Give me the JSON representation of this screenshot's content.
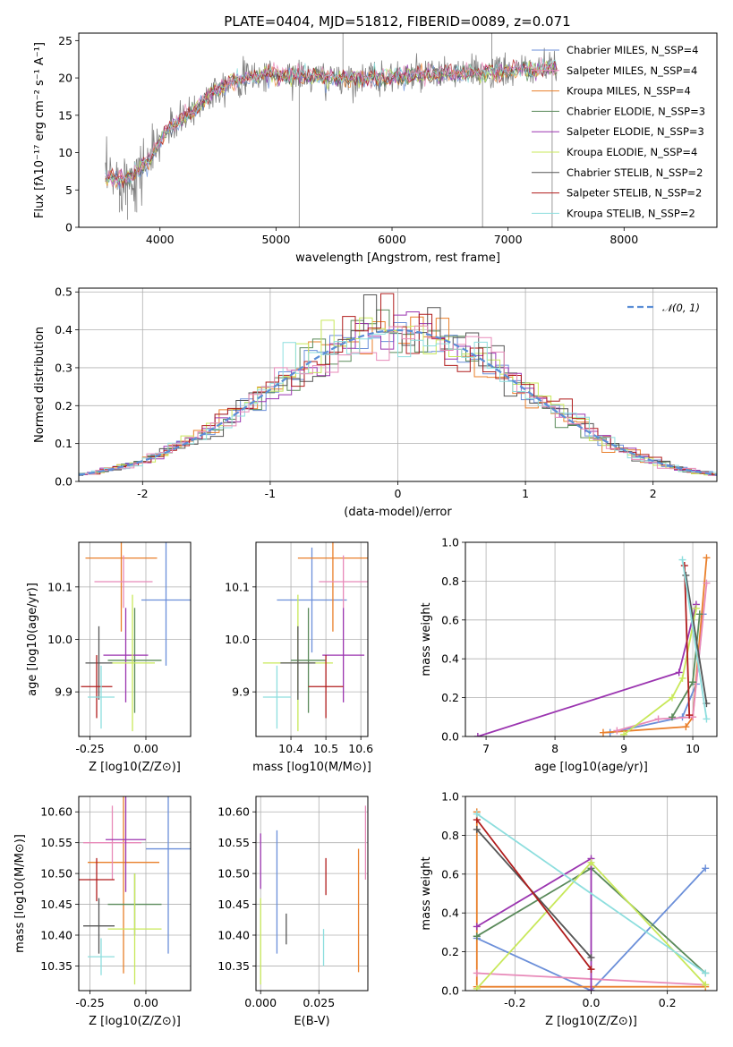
{
  "figure": {
    "title": "PLATE=0404, MJD=51812, FIBERID=0089, z=0.071"
  },
  "colors": [
    "#6b8fd9",
    "#e97f2a",
    "#5a8a5a",
    "#9b35b0",
    "#c8e85a",
    "#555555",
    "#b01c1c",
    "#8ddede",
    "#e88ab9"
  ],
  "chart_data": [
    {
      "id": "spectrum",
      "type": "line",
      "xlabel": "wavelength [Angstrom, rest frame]",
      "ylabel": "Flux [fλ10⁻¹⁷ erg cm⁻² s⁻¹ A⁻¹]",
      "xlim": [
        3300,
        8800
      ],
      "ylim": [
        0,
        26
      ],
      "xticks": [
        4000,
        5000,
        6000,
        7000,
        8000
      ],
      "yticks": [
        0,
        5,
        10,
        15,
        20,
        25
      ],
      "legend_position": "right",
      "series": [
        {
          "name": "Chabrier MILES, N_SSP=4",
          "color": "#6b8fd9"
        },
        {
          "name": "Salpeter MILES, N_SSP=4",
          "color": "#e88ab9"
        },
        {
          "name": "Kroupa MILES, N_SSP=4",
          "color": "#e97f2a"
        },
        {
          "name": "Chabrier ELODIE, N_SSP=3",
          "color": "#5a8a5a"
        },
        {
          "name": "Salpeter ELODIE, N_SSP=3",
          "color": "#9b35b0"
        },
        {
          "name": "Kroupa ELODIE, N_SSP=4",
          "color": "#c8e85a"
        },
        {
          "name": "Chabrier STELIB, N_SSP=2",
          "color": "#555555"
        },
        {
          "name": "Salpeter STELIB, N_SSP=2",
          "color": "#b01c1c"
        },
        {
          "name": "Kroupa STELIB, N_SSP=2",
          "color": "#8ddede"
        }
      ],
      "continuum": {
        "x": [
          3530,
          3700,
          3850,
          3950,
          4050,
          4200,
          4300,
          4400,
          4600,
          4900,
          5200,
          5500,
          5800,
          6100,
          6400,
          6700,
          7000,
          7200,
          7400
        ],
        "y": [
          6.5,
          6.5,
          8.0,
          10.0,
          13.0,
          14.5,
          15.5,
          17.5,
          19.5,
          20.5,
          20.3,
          20.0,
          20.0,
          20.2,
          20.5,
          20.7,
          20.8,
          21.2,
          21.3
        ]
      }
    },
    {
      "id": "residuals",
      "type": "histogram",
      "xlabel": "(data-model)/error",
      "ylabel": "Normed distribution",
      "xlim": [
        -2.5,
        2.5
      ],
      "ylim": [
        0,
        0.51
      ],
      "xticks": [
        -2,
        -1,
        0,
        1,
        2
      ],
      "yticks": [
        0.0,
        0.1,
        0.2,
        0.3,
        0.4,
        0.5
      ],
      "grid": true,
      "legend_position": "top-right",
      "reference_curve": {
        "name": "𝒩(0, 1)",
        "mean": 0,
        "sigma": 1,
        "style": "dashed",
        "color": "#5b8ed6"
      },
      "bin_width": 0.1
    },
    {
      "id": "age_vs_Z",
      "type": "errorbar",
      "xlabel": "Z [log10(Z/Z⊙)]",
      "ylabel": "age  [log10(age/yr)]",
      "xlim": [
        -0.3,
        0.2
      ],
      "ylim": [
        9.815,
        10.185
      ],
      "xticks": [
        -0.25,
        0.0
      ],
      "yticks": [
        9.9,
        10.0,
        10.1
      ],
      "grid": true,
      "points": [
        {
          "x": 0.09,
          "y": 10.075,
          "xerr": 0.11,
          "yerr": 0.125,
          "color": "#6b8fd9"
        },
        {
          "x": -0.11,
          "y": 10.155,
          "xerr": 0.16,
          "yerr": 0.14,
          "color": "#e97f2a"
        },
        {
          "x": -0.1,
          "y": 10.11,
          "xerr": 0.13,
          "yerr": 0.05,
          "color": "#e88ab9"
        },
        {
          "x": -0.05,
          "y": 9.96,
          "xerr": 0.12,
          "yerr": 0.1,
          "color": "#5a8a5a"
        },
        {
          "x": -0.09,
          "y": 9.97,
          "xerr": 0.1,
          "yerr": 0.09,
          "color": "#9b35b0"
        },
        {
          "x": -0.06,
          "y": 9.955,
          "xerr": 0.1,
          "yerr": 0.13,
          "color": "#c8e85a"
        },
        {
          "x": -0.21,
          "y": 9.955,
          "xerr": 0.06,
          "yerr": 0.07,
          "color": "#555555"
        },
        {
          "x": -0.22,
          "y": 9.91,
          "xerr": 0.07,
          "yerr": 0.06,
          "color": "#b01c1c"
        },
        {
          "x": -0.2,
          "y": 9.89,
          "xerr": 0.06,
          "yerr": 0.06,
          "color": "#8ddede"
        }
      ]
    },
    {
      "id": "age_vs_mass",
      "type": "errorbar",
      "xlabel": "mass [log10(M/M⊙)]",
      "xlim": [
        10.3,
        10.62
      ],
      "ylim": [
        9.815,
        10.185
      ],
      "xticks": [
        10.4,
        10.5,
        10.6
      ],
      "yticks": [
        9.9,
        10.0,
        10.1
      ],
      "grid": true,
      "points": [
        {
          "x": 10.46,
          "y": 10.075,
          "xerr": 0.1,
          "yerr": 0.1,
          "color": "#6b8fd9"
        },
        {
          "x": 10.52,
          "y": 10.155,
          "xerr": 0.1,
          "yerr": 0.14,
          "color": "#e97f2a"
        },
        {
          "x": 10.55,
          "y": 10.11,
          "xerr": 0.07,
          "yerr": 0.05,
          "color": "#e88ab9"
        },
        {
          "x": 10.45,
          "y": 9.96,
          "xerr": 0.05,
          "yerr": 0.1,
          "color": "#5a8a5a"
        },
        {
          "x": 10.55,
          "y": 9.97,
          "xerr": 0.06,
          "yerr": 0.09,
          "color": "#9b35b0"
        },
        {
          "x": 10.42,
          "y": 9.955,
          "xerr": 0.1,
          "yerr": 0.13,
          "color": "#c8e85a"
        },
        {
          "x": 10.42,
          "y": 9.955,
          "xerr": 0.05,
          "yerr": 0.07,
          "color": "#555555"
        },
        {
          "x": 10.5,
          "y": 9.91,
          "xerr": 0.05,
          "yerr": 0.06,
          "color": "#b01c1c"
        },
        {
          "x": 10.36,
          "y": 9.89,
          "xerr": 0.04,
          "yerr": 0.06,
          "color": "#8ddede"
        }
      ]
    },
    {
      "id": "weight_vs_age",
      "type": "line",
      "xlabel": "age  [log10(age/yr)]",
      "ylabel": "mass weight",
      "xlim": [
        6.7,
        10.35
      ],
      "ylim": [
        0,
        1.0
      ],
      "xticks": [
        7,
        8,
        9,
        10
      ],
      "yticks": [
        0.0,
        0.2,
        0.4,
        0.6,
        0.8,
        1.0
      ],
      "grid": true,
      "marker": "+",
      "series": [
        {
          "color": "#6b8fd9",
          "x": [
            8.8,
            9.85,
            10.05,
            10.15
          ],
          "y": [
            0.02,
            0.1,
            0.27,
            0.63
          ]
        },
        {
          "color": "#e97f2a",
          "x": [
            8.7,
            9.9,
            10.0,
            10.2
          ],
          "y": [
            0.02,
            0.05,
            0.1,
            0.92
          ]
        },
        {
          "color": "#e88ab9",
          "x": [
            8.9,
            9.5,
            10.0,
            10.2
          ],
          "y": [
            0.03,
            0.09,
            0.1,
            0.79
          ]
        },
        {
          "color": "#5a8a5a",
          "x": [
            9.7,
            10.0,
            10.1
          ],
          "y": [
            0.1,
            0.28,
            0.63
          ]
        },
        {
          "color": "#9b35b0",
          "x": [
            6.88,
            9.8,
            10.05
          ],
          "y": [
            0.0,
            0.33,
            0.68
          ]
        },
        {
          "color": "#c8e85a",
          "x": [
            9.0,
            9.7,
            9.85,
            10.05
          ],
          "y": [
            0.01,
            0.2,
            0.3,
            0.66
          ]
        },
        {
          "color": "#555555",
          "x": [
            9.9,
            10.2
          ],
          "y": [
            0.83,
            0.17
          ]
        },
        {
          "color": "#b01c1c",
          "x": [
            9.88,
            9.95
          ],
          "y": [
            0.88,
            0.11
          ]
        },
        {
          "color": "#8ddede",
          "x": [
            9.85,
            10.2
          ],
          "y": [
            0.91,
            0.09
          ]
        }
      ]
    },
    {
      "id": "mass_vs_Z",
      "type": "errorbar",
      "xlabel": "Z [log10(Z/Z⊙)]",
      "ylabel": "mass [log10(M/M⊙)]",
      "xlim": [
        -0.3,
        0.2
      ],
      "ylim": [
        10.31,
        10.625
      ],
      "xticks": [
        -0.25,
        0.0
      ],
      "yticks": [
        10.35,
        10.4,
        10.45,
        10.5,
        10.55,
        10.6
      ],
      "grid": true,
      "points": [
        {
          "x": 0.1,
          "y": 10.54,
          "xerr": 0.1,
          "yerr": 0.17,
          "color": "#6b8fd9"
        },
        {
          "x": -0.1,
          "y": 10.518,
          "xerr": 0.16,
          "yerr": 0.18,
          "color": "#e97f2a"
        },
        {
          "x": -0.15,
          "y": 10.55,
          "xerr": 0.13,
          "yerr": 0.06,
          "color": "#e88ab9"
        },
        {
          "x": -0.05,
          "y": 10.45,
          "xerr": 0.12,
          "yerr": 0.05,
          "color": "#5a8a5a"
        },
        {
          "x": -0.09,
          "y": 10.555,
          "xerr": 0.09,
          "yerr": 0.085,
          "color": "#9b35b0"
        },
        {
          "x": -0.05,
          "y": 10.41,
          "xerr": 0.12,
          "yerr": 0.09,
          "color": "#c8e85a"
        },
        {
          "x": -0.21,
          "y": 10.415,
          "xerr": 0.07,
          "yerr": 0.045,
          "color": "#555555"
        },
        {
          "x": -0.22,
          "y": 10.49,
          "xerr": 0.08,
          "yerr": 0.035,
          "color": "#b01c1c"
        },
        {
          "x": -0.2,
          "y": 10.365,
          "xerr": 0.06,
          "yerr": 0.03,
          "color": "#8ddede"
        }
      ]
    },
    {
      "id": "mass_vs_EBV",
      "type": "errorbar",
      "xlabel": "E(B-V)",
      "xlim": [
        -0.002,
        0.046
      ],
      "ylim": [
        10.31,
        10.625
      ],
      "xticks": [
        0.0,
        0.025
      ],
      "yticks": [
        10.35,
        10.4,
        10.45,
        10.5,
        10.55,
        10.6
      ],
      "grid": true,
      "points": [
        {
          "x": 0.007,
          "y": 10.47,
          "xerr": 0,
          "yerr": 0.1,
          "color": "#6b8fd9"
        },
        {
          "x": 0.042,
          "y": 10.44,
          "xerr": 0,
          "yerr": 0.1,
          "color": "#e97f2a"
        },
        {
          "x": 0.045,
          "y": 10.55,
          "xerr": 0,
          "yerr": 0.06,
          "color": "#e88ab9"
        },
        {
          "x": 0.027,
          "y": 10.38,
          "xerr": 0,
          "yerr": 0.03,
          "color": "#8ddede"
        },
        {
          "x": 0.0,
          "y": 10.52,
          "xerr": 0,
          "yerr": 0.045,
          "color": "#9b35b0"
        },
        {
          "x": 0.0,
          "y": 10.39,
          "xerr": 0,
          "yerr": 0.07,
          "color": "#c8e85a"
        },
        {
          "x": 0.011,
          "y": 10.41,
          "xerr": 0,
          "yerr": 0.025,
          "color": "#555555"
        },
        {
          "x": 0.028,
          "y": 10.495,
          "xerr": 0,
          "yerr": 0.03,
          "color": "#b01c1c"
        }
      ]
    },
    {
      "id": "weight_vs_Z",
      "type": "line",
      "xlabel": "Z [log10(Z/Z⊙)]",
      "ylabel": "mass weight",
      "xlim": [
        -0.33,
        0.33
      ],
      "ylim": [
        0,
        1.0
      ],
      "xticks": [
        -0.2,
        0.0,
        0.2
      ],
      "yticks": [
        0.0,
        0.2,
        0.4,
        0.6,
        0.8,
        1.0
      ],
      "grid": true,
      "marker": "+",
      "series": [
        {
          "color": "#6b8fd9",
          "x": [
            -0.3,
            0.0,
            0.3
          ],
          "y": [
            0.27,
            0.0,
            0.63
          ]
        },
        {
          "color": "#e97f2a",
          "x": [
            -0.3,
            -0.3,
            0.0,
            0.3
          ],
          "y": [
            0.92,
            0.02,
            0.02,
            0.02
          ]
        },
        {
          "color": "#e88ab9",
          "x": [
            -0.3,
            0.3
          ],
          "y": [
            0.09,
            0.03
          ]
        },
        {
          "color": "#5a8a5a",
          "x": [
            -0.3,
            0.0,
            0.3
          ],
          "y": [
            0.28,
            0.63,
            0.09
          ]
        },
        {
          "color": "#9b35b0",
          "x": [
            -0.3,
            0.0,
            0.0
          ],
          "y": [
            0.33,
            0.68,
            0.0
          ]
        },
        {
          "color": "#c8e85a",
          "x": [
            -0.3,
            0.0,
            0.3
          ],
          "y": [
            0.01,
            0.66,
            0.03
          ]
        },
        {
          "color": "#555555",
          "x": [
            -0.3,
            0.0
          ],
          "y": [
            0.83,
            0.17
          ]
        },
        {
          "color": "#b01c1c",
          "x": [
            -0.3,
            0.0
          ],
          "y": [
            0.88,
            0.11
          ]
        },
        {
          "color": "#8ddede",
          "x": [
            -0.3,
            0.3
          ],
          "y": [
            0.91,
            0.09
          ]
        }
      ]
    }
  ]
}
